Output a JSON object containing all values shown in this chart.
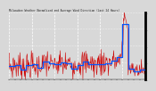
{
  "title": "Milwaukee Weather Normalized and Average Wind Direction (Last 24 Hours)",
  "bg_color": "#d8d8d8",
  "plot_bg_color": "#d8d8d8",
  "red_color": "#cc0000",
  "blue_color": "#0055ff",
  "ylim": [
    0,
    360
  ],
  "n_points": 288,
  "grid_color": "#ffffff",
  "right_border_color": "#000000"
}
